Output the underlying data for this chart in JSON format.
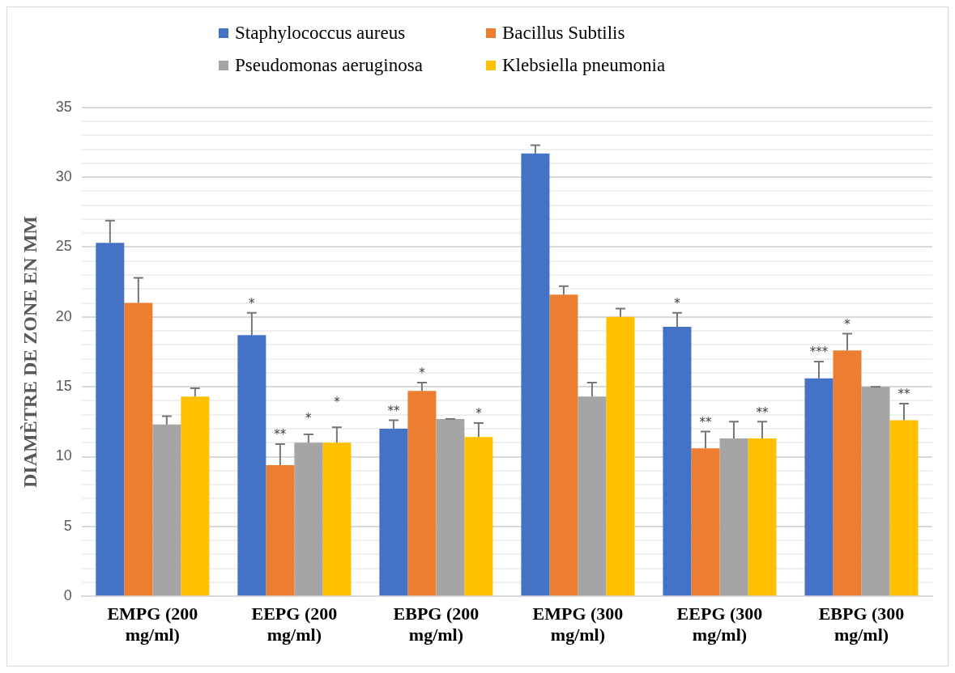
{
  "chart_data": {
    "type": "bar",
    "ylabel": "DIAMÈTRE DE ZONE EN MM",
    "categories": [
      "EMPG (200 mg/ml)",
      "EEPG (200 mg/ml)",
      "EBPG (200 mg/ml)",
      "EMPG (300 mg/ml)",
      "EEPG (300 mg/ml)",
      "EBPG (300 mg/ml)"
    ],
    "series": [
      {
        "name": "Staphylococcus aureus",
        "color": "#4472c4",
        "values": [
          25.3,
          18.7,
          12.0,
          31.7,
          19.3,
          15.6
        ],
        "errors": [
          1.6,
          1.6,
          0.6,
          0.6,
          1.0,
          1.2
        ],
        "value_labels": [
          null,
          "*",
          "**",
          null,
          "*",
          "***"
        ]
      },
      {
        "name": "Bacillus Subtilis",
        "color": "#ed7d31",
        "values": [
          21.0,
          9.4,
          14.7,
          21.6,
          10.6,
          17.6
        ],
        "errors": [
          1.8,
          1.5,
          0.6,
          0.6,
          1.2,
          1.2
        ],
        "value_labels": [
          null,
          "**",
          "*",
          null,
          "**",
          "*"
        ]
      },
      {
        "name": "Pseudomonas aeruginosa",
        "color": "#a5a5a5",
        "values": [
          12.3,
          11.0,
          12.7,
          14.3,
          11.3,
          15.0
        ],
        "errors": [
          0.6,
          0.6,
          0,
          1.0,
          1.2,
          0
        ],
        "value_labels": [
          null,
          "*",
          null,
          null,
          null,
          null
        ]
      },
      {
        "name": "Klebsiella pneumonia",
        "color": "#ffc000",
        "values": [
          14.3,
          11.0,
          11.4,
          20.0,
          11.3,
          12.6
        ],
        "errors": [
          0.6,
          1.1,
          1.0,
          0.6,
          1.2,
          1.2
        ],
        "value_labels": [
          null,
          "*",
          "*",
          null,
          "**",
          "**"
        ]
      }
    ],
    "ylim": [
      0,
      35
    ],
    "yticks": [
      0,
      {
        "value": 1,
        "label": null
      },
      {
        "value": 2,
        "label": null
      },
      {
        "value": 3,
        "label": null
      },
      {
        "value": 4,
        "label": null
      },
      5,
      {
        "value": 6,
        "label": null
      },
      {
        "value": 7,
        "label": null
      },
      {
        "value": 8,
        "label": null
      },
      {
        "value": 9,
        "label": null
      },
      10,
      {
        "value": 11,
        "label": null
      },
      {
        "value": 12,
        "label": null
      },
      {
        "value": 13,
        "label": null
      },
      {
        "value": 14,
        "label": null
      },
      15,
      {
        "value": 16,
        "label": null
      },
      {
        "value": 17,
        "label": null
      },
      {
        "value": 18,
        "label": null
      },
      {
        "value": 19,
        "label": null
      },
      20,
      {
        "value": 21,
        "label": null
      },
      {
        "value": 22,
        "label": null
      },
      {
        "value": 23,
        "label": null
      },
      {
        "value": 24,
        "label": null
      },
      25,
      {
        "value": 26,
        "label": null
      },
      {
        "value": 27,
        "label": null
      },
      {
        "value": 28,
        "label": null
      },
      {
        "value": 29,
        "label": null
      },
      30,
      {
        "value": 31,
        "label": null
      },
      {
        "value": 32,
        "label": null
      },
      {
        "value": 33,
        "label": null
      },
      {
        "value": 34,
        "label": null
      },
      35
    ],
    "grid": "y",
    "legend": "top"
  }
}
